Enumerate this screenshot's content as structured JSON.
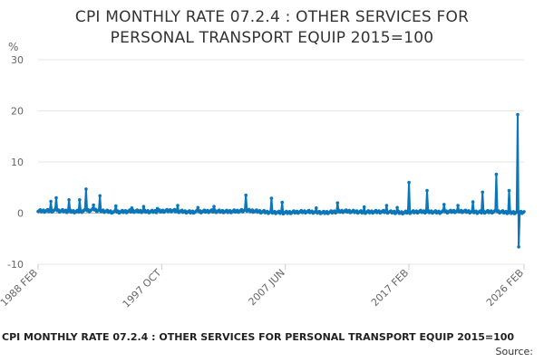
{
  "title_line1": "CPI MONTHLY RATE 07.2.4 : OTHER SERVICES FOR",
  "title_line2": "PERSONAL TRANSPORT EQUIP 2015=100",
  "footer_caption": "CPI MONTHLY RATE 07.2.4 : OTHER SERVICES FOR PERSONAL TRANSPORT EQUIP 2015=100",
  "footer_source": "Source:",
  "colors": {
    "line": "#0b76b9",
    "grid": "#e6e6e6",
    "zero": "#bbbbbb",
    "axis_text": "#666666"
  },
  "chart_data": {
    "type": "line",
    "title": "CPI MONTHLY RATE 07.2.4 : OTHER SERVICES FOR PERSONAL TRANSPORT EQUIP 2015=100",
    "unit_label": "%",
    "xlabel": "",
    "ylabel": "%",
    "ylim": [
      -10,
      30
    ],
    "yticks": [
      -10,
      0,
      10,
      20,
      30
    ],
    "x_start": "1988 FEB",
    "x_end": "2026 FEB",
    "xticks": [
      {
        "label": "1988 FEB",
        "t": 1988.083
      },
      {
        "label": "1997 OCT",
        "t": 1997.75
      },
      {
        "label": "2007 JUN",
        "t": 2007.417
      },
      {
        "label": "2017 FEB",
        "t": 2017.083
      },
      {
        "label": "2026 FEB",
        "t": 2026.083
      }
    ],
    "baseline": [
      [
        1988.083,
        0.4
      ],
      [
        1989.5,
        0.5
      ],
      [
        1991.0,
        0.3
      ],
      [
        1992.5,
        0.6
      ],
      [
        1994.0,
        0.2
      ],
      [
        1995.5,
        0.4
      ],
      [
        1997.0,
        0.3
      ],
      [
        1998.5,
        0.5
      ],
      [
        2000.0,
        0.2
      ],
      [
        2001.5,
        0.4
      ],
      [
        2003.0,
        0.3
      ],
      [
        2004.5,
        0.5
      ],
      [
        2006.0,
        0.2
      ],
      [
        2007.5,
        0.1
      ],
      [
        2009.0,
        0.3
      ],
      [
        2010.5,
        0.1
      ],
      [
        2012.0,
        0.4
      ],
      [
        2013.5,
        0.2
      ],
      [
        2015.0,
        0.3
      ],
      [
        2016.5,
        0.1
      ],
      [
        2018.0,
        0.3
      ],
      [
        2019.5,
        0.2
      ],
      [
        2021.0,
        0.4
      ],
      [
        2022.5,
        0.2
      ],
      [
        2024.0,
        0.3
      ],
      [
        2025.0,
        0.1
      ],
      [
        2026.083,
        0.2
      ]
    ],
    "spikes": [
      {
        "t": 1989.1,
        "v": 2.3
      },
      {
        "t": 1989.5,
        "v": 3.0
      },
      {
        "t": 1990.5,
        "v": 2.6
      },
      {
        "t": 1991.3,
        "v": 2.6
      },
      {
        "t": 1991.8,
        "v": 4.7
      },
      {
        "t": 1992.4,
        "v": 1.6
      },
      {
        "t": 1992.9,
        "v": 3.4
      },
      {
        "t": 1994.2,
        "v": 1.4
      },
      {
        "t": 1995.4,
        "v": 1.0
      },
      {
        "t": 1996.3,
        "v": 1.3
      },
      {
        "t": 1997.4,
        "v": 0.9
      },
      {
        "t": 1999.0,
        "v": 1.5
      },
      {
        "t": 2000.6,
        "v": 1.1
      },
      {
        "t": 2001.8,
        "v": 1.3
      },
      {
        "t": 2004.3,
        "v": 3.5
      },
      {
        "t": 2006.3,
        "v": 2.9
      },
      {
        "t": 2007.2,
        "v": 2.1
      },
      {
        "t": 2009.8,
        "v": 1.0
      },
      {
        "t": 2011.5,
        "v": 2.0
      },
      {
        "t": 2013.6,
        "v": 1.2
      },
      {
        "t": 2015.3,
        "v": 1.5
      },
      {
        "t": 2016.2,
        "v": 1.1
      },
      {
        "t": 2017.1,
        "v": 6.0
      },
      {
        "t": 2018.5,
        "v": 4.4
      },
      {
        "t": 2019.8,
        "v": 1.7
      },
      {
        "t": 2020.9,
        "v": 1.5
      },
      {
        "t": 2022.1,
        "v": 2.2
      },
      {
        "t": 2022.8,
        "v": 4.1
      },
      {
        "t": 2023.9,
        "v": 7.6
      },
      {
        "t": 2024.9,
        "v": 4.4
      },
      {
        "t": 2025.6,
        "v": 19.3
      },
      {
        "t": 2025.7,
        "v": -6.6
      }
    ]
  }
}
